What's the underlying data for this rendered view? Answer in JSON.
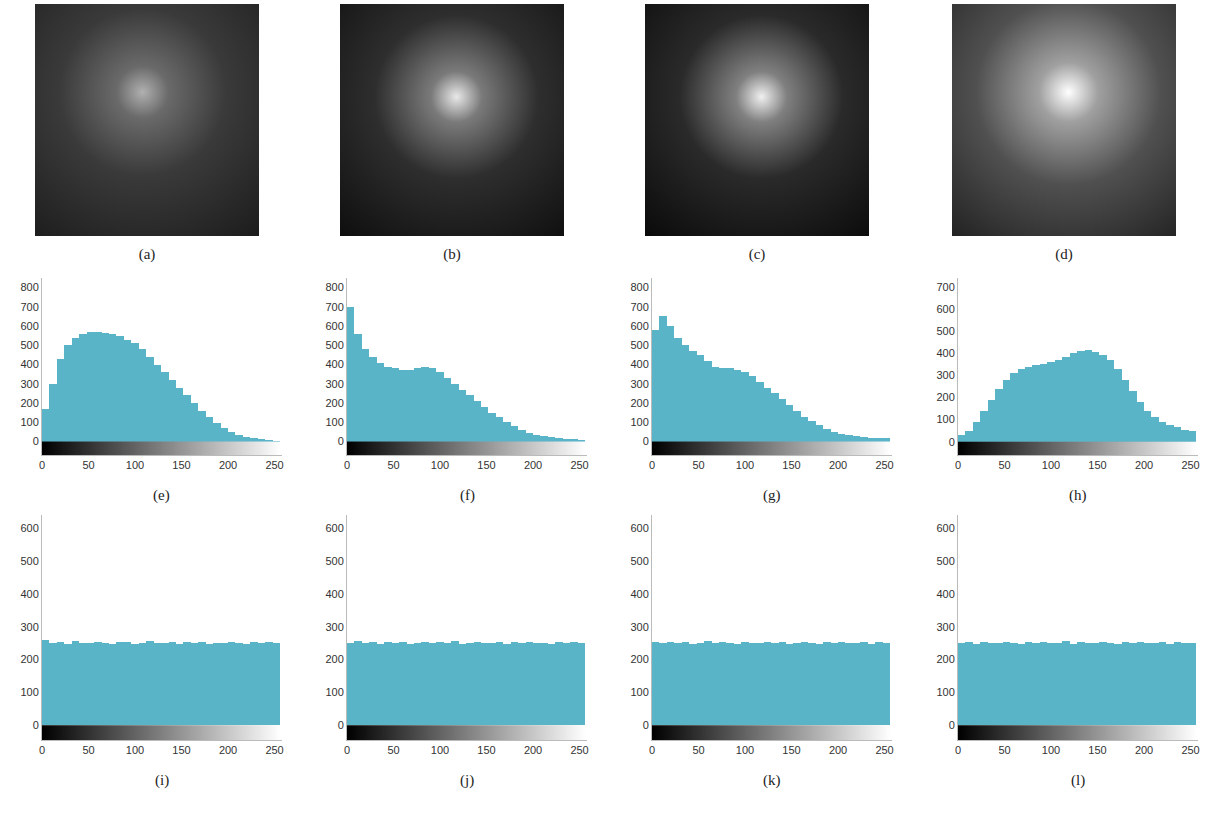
{
  "images": {
    "labels": [
      "(a)",
      "(b)",
      "(c)",
      "(d)"
    ]
  },
  "chart_data": [
    {
      "type": "histogram",
      "title": "(e)",
      "color": "#5ab4c8",
      "bins": [
        0,
        8,
        16,
        24,
        32,
        40,
        48,
        56,
        64,
        72,
        80,
        88,
        96,
        104,
        112,
        120,
        128,
        136,
        144,
        152,
        160,
        168,
        176,
        184,
        192,
        200,
        208,
        216,
        224,
        232,
        240,
        248,
        256
      ],
      "values": [
        170,
        300,
        430,
        500,
        540,
        560,
        570,
        570,
        565,
        560,
        550,
        530,
        510,
        480,
        440,
        400,
        360,
        320,
        280,
        240,
        200,
        160,
        125,
        95,
        70,
        50,
        35,
        25,
        18,
        12,
        8,
        5
      ],
      "xlim": [
        0,
        258
      ],
      "xticks": [
        0,
        50,
        100,
        150,
        200,
        250
      ],
      "ylim": [
        -70,
        850
      ],
      "yticks": [
        0,
        100,
        200,
        300,
        400,
        500,
        600,
        700,
        800
      ]
    },
    {
      "type": "histogram",
      "title": "(f)",
      "color": "#5ab4c8",
      "bins": [
        0,
        8,
        16,
        24,
        32,
        40,
        48,
        56,
        64,
        72,
        80,
        88,
        96,
        104,
        112,
        120,
        128,
        136,
        144,
        152,
        160,
        168,
        176,
        184,
        192,
        200,
        208,
        216,
        224,
        232,
        240,
        248,
        256
      ],
      "values": [
        700,
        560,
        480,
        440,
        410,
        390,
        380,
        370,
        370,
        380,
        390,
        380,
        360,
        330,
        300,
        270,
        240,
        210,
        180,
        150,
        125,
        100,
        80,
        60,
        45,
        35,
        28,
        22,
        18,
        15,
        12,
        10
      ],
      "xlim": [
        0,
        258
      ],
      "xticks": [
        0,
        50,
        100,
        150,
        200,
        250
      ],
      "ylim": [
        -70,
        850
      ],
      "yticks": [
        0,
        100,
        200,
        300,
        400,
        500,
        600,
        700,
        800
      ]
    },
    {
      "type": "histogram",
      "title": "(g)",
      "color": "#5ab4c8",
      "bins": [
        0,
        8,
        16,
        24,
        32,
        40,
        48,
        56,
        64,
        72,
        80,
        88,
        96,
        104,
        112,
        120,
        128,
        136,
        144,
        152,
        160,
        168,
        176,
        184,
        192,
        200,
        208,
        216,
        224,
        232,
        240,
        248,
        256
      ],
      "values": [
        580,
        650,
        600,
        540,
        500,
        470,
        450,
        420,
        390,
        380,
        380,
        370,
        360,
        340,
        310,
        280,
        250,
        220,
        190,
        160,
        130,
        105,
        85,
        65,
        50,
        40,
        32,
        27,
        22,
        20,
        18,
        18
      ],
      "xlim": [
        0,
        258
      ],
      "xticks": [
        0,
        50,
        100,
        150,
        200,
        250
      ],
      "ylim": [
        -70,
        850
      ],
      "yticks": [
        0,
        100,
        200,
        300,
        400,
        500,
        600,
        700,
        800
      ]
    },
    {
      "type": "histogram",
      "title": "(h)",
      "color": "#5ab4c8",
      "bins": [
        0,
        8,
        16,
        24,
        32,
        40,
        48,
        56,
        64,
        72,
        80,
        88,
        96,
        104,
        112,
        120,
        128,
        136,
        144,
        152,
        160,
        168,
        176,
        184,
        192,
        200,
        208,
        216,
        224,
        232,
        240,
        248,
        256
      ],
      "values": [
        30,
        50,
        90,
        140,
        190,
        240,
        280,
        310,
        330,
        340,
        345,
        350,
        360,
        370,
        385,
        400,
        410,
        415,
        405,
        390,
        370,
        330,
        280,
        230,
        180,
        140,
        110,
        90,
        75,
        65,
        55,
        50
      ],
      "xlim": [
        0,
        258
      ],
      "xticks": [
        0,
        50,
        100,
        150,
        200,
        250
      ],
      "ylim": [
        -60,
        740
      ],
      "yticks": [
        0,
        100,
        200,
        300,
        400,
        500,
        600,
        700
      ]
    },
    {
      "type": "histogram",
      "title": "(i)",
      "color": "#5ab4c8",
      "bins": [
        0,
        8,
        16,
        24,
        32,
        40,
        48,
        56,
        64,
        72,
        80,
        88,
        96,
        104,
        112,
        120,
        128,
        136,
        144,
        152,
        160,
        168,
        176,
        184,
        192,
        200,
        208,
        216,
        224,
        232,
        240,
        248,
        256
      ],
      "values": [
        258,
        250,
        252,
        247,
        255,
        251,
        249,
        253,
        250,
        246,
        254,
        252,
        248,
        251,
        255,
        249,
        250,
        253,
        247,
        252,
        250,
        254,
        248,
        251,
        249,
        253,
        250,
        247,
        252,
        251,
        254,
        249
      ],
      "xlim": [
        0,
        258
      ],
      "xticks": [
        0,
        50,
        100,
        150,
        200,
        250
      ],
      "ylim": [
        -45,
        640
      ],
      "yticks": [
        0,
        100,
        200,
        300,
        400,
        500,
        600
      ]
    },
    {
      "type": "histogram",
      "title": "(j)",
      "color": "#5ab4c8",
      "bins": [
        0,
        8,
        16,
        24,
        32,
        40,
        48,
        56,
        64,
        72,
        80,
        88,
        96,
        104,
        112,
        120,
        128,
        136,
        144,
        152,
        160,
        168,
        176,
        184,
        192,
        200,
        208,
        216,
        224,
        232,
        240,
        248,
        256
      ],
      "values": [
        251,
        255,
        249,
        253,
        248,
        252,
        250,
        254,
        247,
        251,
        253,
        249,
        252,
        250,
        255,
        248,
        251,
        253,
        249,
        250,
        254,
        247,
        252,
        250,
        253,
        249,
        251,
        248,
        254,
        250,
        252,
        251
      ],
      "xlim": [
        0,
        258
      ],
      "xticks": [
        0,
        50,
        100,
        150,
        200,
        250
      ],
      "ylim": [
        -45,
        640
      ],
      "yticks": [
        0,
        100,
        200,
        300,
        400,
        500,
        600
      ]
    },
    {
      "type": "histogram",
      "title": "(k)",
      "color": "#5ab4c8",
      "bins": [
        0,
        8,
        16,
        24,
        32,
        40,
        48,
        56,
        64,
        72,
        80,
        88,
        96,
        104,
        112,
        120,
        128,
        136,
        144,
        152,
        160,
        168,
        176,
        184,
        192,
        200,
        208,
        216,
        224,
        232,
        240,
        248,
        256
      ],
      "values": [
        254,
        249,
        252,
        250,
        253,
        247,
        251,
        255,
        249,
        252,
        250,
        248,
        253,
        251,
        249,
        254,
        250,
        252,
        248,
        251,
        253,
        250,
        247,
        252,
        249,
        254,
        251,
        250,
        252,
        248,
        253,
        250
      ],
      "xlim": [
        0,
        258
      ],
      "xticks": [
        0,
        50,
        100,
        150,
        200,
        250
      ],
      "ylim": [
        -45,
        640
      ],
      "yticks": [
        0,
        100,
        200,
        300,
        400,
        500,
        600
      ]
    },
    {
      "type": "histogram",
      "title": "(l)",
      "color": "#5ab4c8",
      "bins": [
        0,
        8,
        16,
        24,
        32,
        40,
        48,
        56,
        64,
        72,
        80,
        88,
        96,
        104,
        112,
        120,
        128,
        136,
        144,
        152,
        160,
        168,
        176,
        184,
        192,
        200,
        208,
        216,
        224,
        232,
        240,
        248,
        256
      ],
      "values": [
        250,
        253,
        248,
        252,
        251,
        249,
        254,
        250,
        247,
        253,
        251,
        252,
        249,
        250,
        255,
        248,
        252,
        251,
        249,
        253,
        250,
        247,
        252,
        251,
        254,
        249,
        250,
        253,
        248,
        252,
        251,
        250
      ],
      "xlim": [
        0,
        258
      ],
      "xticks": [
        0,
        50,
        100,
        150,
        200,
        250
      ],
      "ylim": [
        -45,
        640
      ],
      "yticks": [
        0,
        100,
        200,
        300,
        400,
        500,
        600
      ]
    }
  ]
}
